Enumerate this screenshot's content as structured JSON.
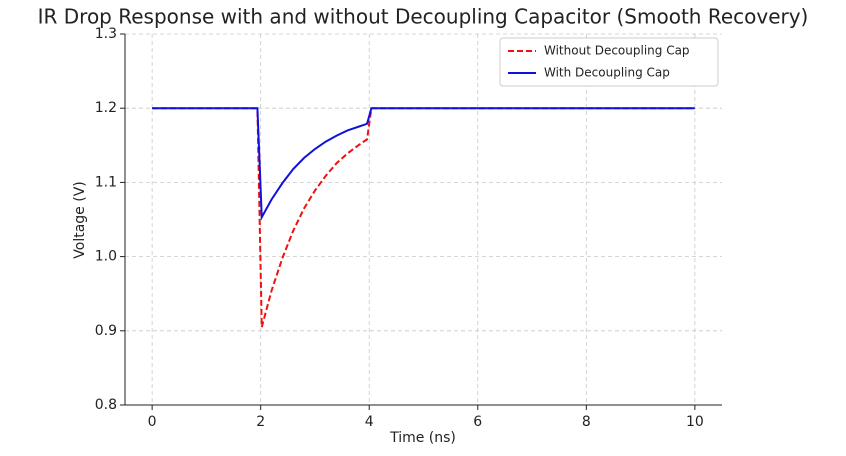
{
  "chart_data": {
    "type": "line",
    "title": "IR Drop Response with and without Decoupling Capacitor (Smooth Recovery)",
    "x_label": "Time (ns)",
    "y_label": "Voltage (V)",
    "x": [
      0,
      1.94,
      2.02,
      2.2,
      2.4,
      2.6,
      2.8,
      3.0,
      3.2,
      3.4,
      3.6,
      3.8,
      3.96,
      4.04,
      10
    ],
    "series": [
      {
        "name": "Without Decoupling Cap",
        "color": "#ee1111",
        "dash": true,
        "values": [
          1.2,
          1.2,
          0.905,
          0.954,
          0.998,
          1.035,
          1.065,
          1.089,
          1.109,
          1.126,
          1.139,
          1.15,
          1.158,
          1.2,
          1.2
        ]
      },
      {
        "name": "With Decoupling Cap",
        "color": "#1111dd",
        "dash": false,
        "values": [
          1.2,
          1.2,
          1.053,
          1.077,
          1.099,
          1.118,
          1.133,
          1.145,
          1.155,
          1.163,
          1.17,
          1.175,
          1.179,
          1.2,
          1.2
        ]
      }
    ],
    "xlim": [
      -0.5,
      10.5
    ],
    "ylim": [
      0.8,
      1.3
    ],
    "xticks": [
      0,
      2,
      4,
      6,
      8,
      10
    ],
    "yticks": [
      0.8,
      0.9,
      {
        "value": 1,
        "label": "1.0"
      },
      1.1,
      1.2,
      1.3
    ],
    "grid": true,
    "legend": "upper right"
  }
}
